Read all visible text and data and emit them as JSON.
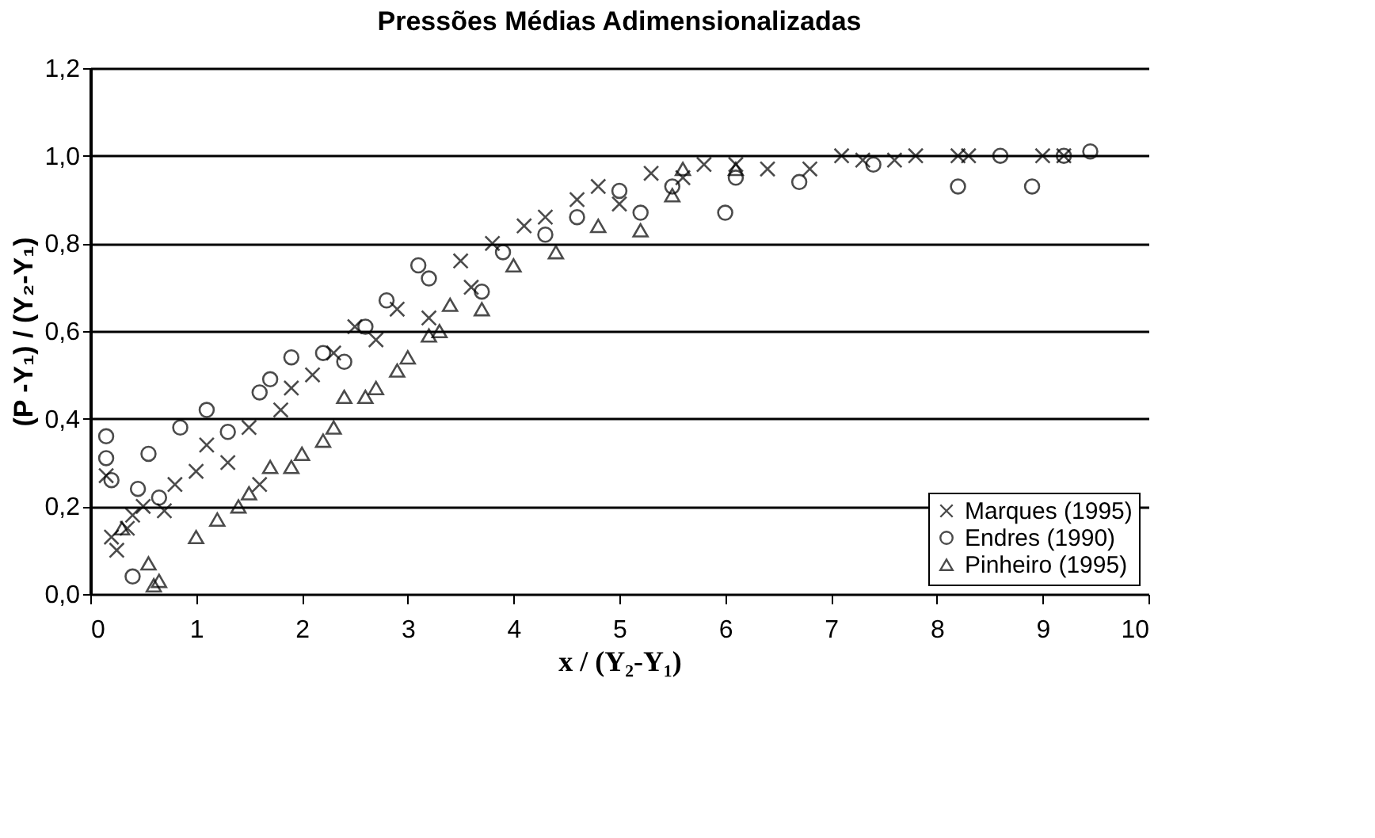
{
  "chart_data": {
    "type": "scatter",
    "title": "Pressões Médias Adimensionalizadas",
    "xlabel": "x / (Y₂-Y₁)",
    "ylabel": "(P -Y₁) / (Y₂-Y₁)",
    "xlim": [
      0,
      10
    ],
    "xticks": [
      0,
      1,
      2,
      3,
      4,
      5,
      6,
      7,
      8,
      9,
      10
    ],
    "ylim": [
      0,
      1.2
    ],
    "yticks": [
      {
        "value": 0,
        "label": "0,0"
      },
      {
        "value": 0.2,
        "label": "0,2"
      },
      {
        "value": 0.4,
        "label": "0,4"
      },
      {
        "value": 0.6,
        "label": "0,6"
      },
      {
        "value": 0.8,
        "label": "0,8"
      },
      {
        "value": 1.0,
        "label": "1,0"
      },
      {
        "value": 1.2,
        "label": "1,2"
      }
    ],
    "grid": "y",
    "legend": "bottom right",
    "series": [
      {
        "name": "Marques (1995)",
        "color": "#000000",
        "marker": "cross",
        "x": [
          0.15,
          0.2,
          0.25,
          0.35,
          0.4,
          0.5,
          0.7,
          0.8,
          1.0,
          1.1,
          1.3,
          1.5,
          1.6,
          1.8,
          1.9,
          2.1,
          2.3,
          2.5,
          2.7,
          2.9,
          3.2,
          3.5,
          3.6,
          3.8,
          4.1,
          4.3,
          4.6,
          4.8,
          5.0,
          5.3,
          5.6,
          5.8,
          6.1,
          6.4,
          6.8,
          7.1,
          7.3,
          7.6,
          7.8,
          8.2,
          8.3,
          9.0,
          9.2
        ],
        "values": [
          0.27,
          0.13,
          0.1,
          0.15,
          0.18,
          0.2,
          0.19,
          0.25,
          0.28,
          0.34,
          0.3,
          0.38,
          0.25,
          0.42,
          0.47,
          0.5,
          0.55,
          0.61,
          0.58,
          0.65,
          0.63,
          0.76,
          0.7,
          0.8,
          0.84,
          0.86,
          0.9,
          0.93,
          0.89,
          0.96,
          0.95,
          0.98,
          0.98,
          0.97,
          0.97,
          1.0,
          0.99,
          0.99,
          1.0,
          1.0,
          1.0,
          1.0,
          1.0
        ]
      },
      {
        "name": "Endres (1990)",
        "color": "#000000",
        "marker": "circle",
        "x": [
          0.15,
          0.15,
          0.2,
          0.4,
          0.45,
          0.55,
          0.65,
          0.85,
          1.1,
          1.3,
          1.6,
          1.7,
          1.9,
          2.2,
          2.4,
          2.6,
          2.8,
          3.1,
          3.2,
          3.7,
          3.9,
          4.3,
          4.6,
          5.0,
          5.2,
          5.5,
          6.0,
          6.1,
          6.7,
          7.4,
          8.2,
          8.6,
          8.9,
          9.2,
          9.45
        ],
        "values": [
          0.36,
          0.31,
          0.26,
          0.04,
          0.24,
          0.32,
          0.22,
          0.38,
          0.42,
          0.37,
          0.46,
          0.49,
          0.54,
          0.55,
          0.53,
          0.61,
          0.67,
          0.75,
          0.72,
          0.69,
          0.78,
          0.82,
          0.86,
          0.92,
          0.87,
          0.93,
          0.87,
          0.95,
          0.94,
          0.98,
          0.93,
          1.0,
          0.93,
          1.0,
          1.01
        ]
      },
      {
        "name": "Pinheiro (1995)",
        "color": "#000000",
        "marker": "triangle",
        "x": [
          0.3,
          0.55,
          0.6,
          0.65,
          1.0,
          1.2,
          1.4,
          1.5,
          1.7,
          1.9,
          2.0,
          2.2,
          2.3,
          2.4,
          2.6,
          2.7,
          2.9,
          3.0,
          3.2,
          3.3,
          3.4,
          3.7,
          4.0,
          4.4,
          4.8,
          5.2,
          5.5,
          5.6,
          6.1
        ],
        "values": [
          0.15,
          0.07,
          0.02,
          0.03,
          0.13,
          0.17,
          0.2,
          0.23,
          0.29,
          0.29,
          0.32,
          0.35,
          0.38,
          0.45,
          0.45,
          0.47,
          0.51,
          0.54,
          0.59,
          0.6,
          0.66,
          0.65,
          0.75,
          0.78,
          0.84,
          0.83,
          0.91,
          0.97,
          0.97
        ]
      }
    ]
  }
}
